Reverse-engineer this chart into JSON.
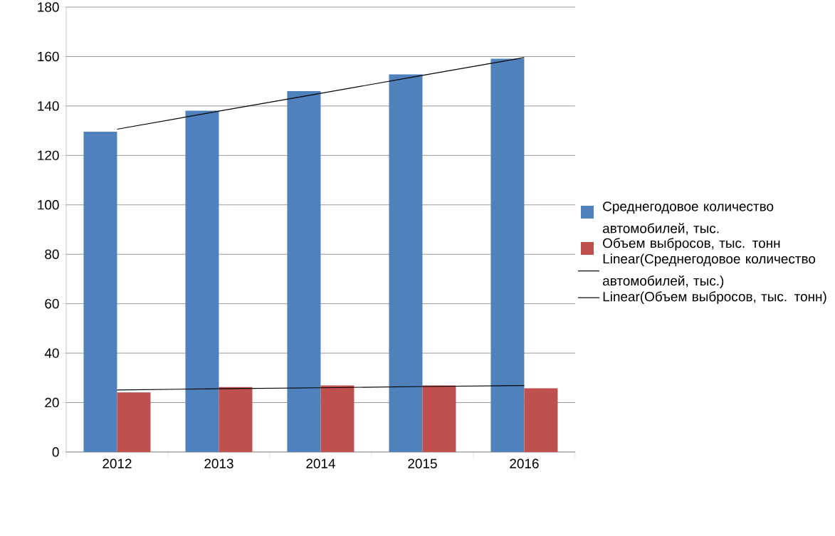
{
  "chart_data": {
    "type": "bar",
    "categories": [
      "2012",
      "2013",
      "2014",
      "2015",
      "2016"
    ],
    "series": [
      {
        "name": "Среднегодовое количество автомобилей, тыс.",
        "color": "#4f81bd",
        "values": [
          129.6,
          138.1,
          146.0,
          152.8,
          159.1
        ]
      },
      {
        "name": "Объем выбросов, тыс. тонн",
        "color": "#c0504d",
        "values": [
          24.1,
          26.3,
          26.9,
          26.9,
          25.8
        ]
      },
      {
        "name": "Linear(Среднегодовое количество автомобилей, тыс.)",
        "type": "line",
        "color": "#000000",
        "values": [
          130.6,
          137.9,
          145.1,
          152.4,
          159.6
        ]
      },
      {
        "name": "Linear(Объем выбросов, тыс. тонн)",
        "type": "line",
        "color": "#000000",
        "values": [
          25.1,
          25.6,
          26.0,
          26.5,
          26.9
        ]
      }
    ],
    "ylim": [
      0,
      180
    ],
    "yticks": [
      0,
      20,
      40,
      60,
      80,
      100,
      120,
      140,
      160,
      180
    ],
    "grid": "y",
    "legend": "right",
    "marker": "none",
    "line_style": "solid"
  }
}
